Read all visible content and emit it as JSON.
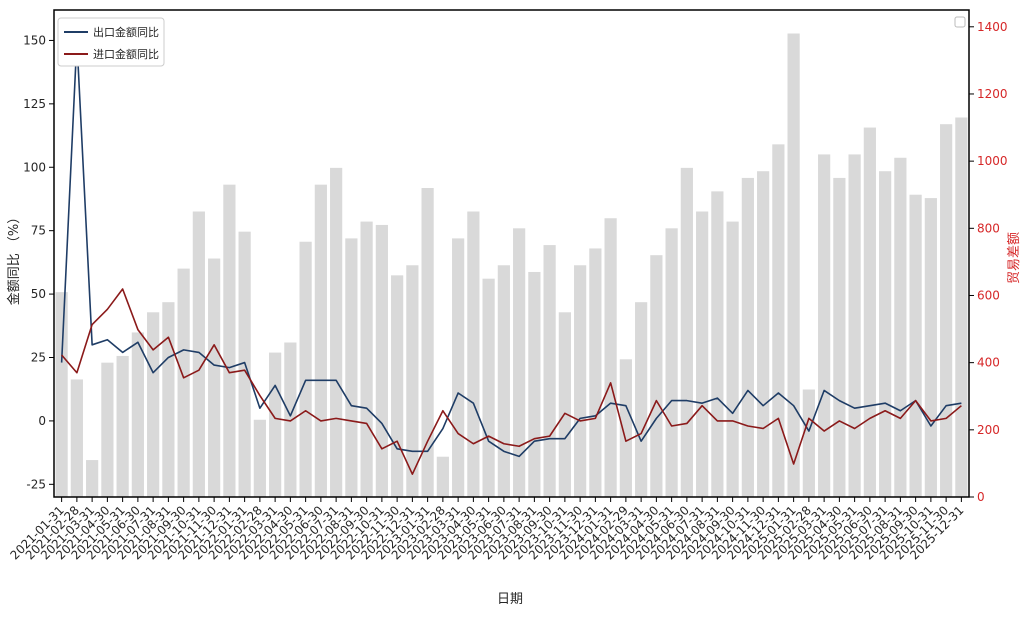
{
  "chart_data": {
    "type": "bar+line",
    "x": [
      "2021-01-31",
      "2021-02-28",
      "2021-03-31",
      "2021-04-30",
      "2021-05-31",
      "2021-06-30",
      "2021-07-31",
      "2021-08-31",
      "2021-09-30",
      "2021-10-31",
      "2021-11-30",
      "2021-12-31",
      "2022-01-31",
      "2022-02-28",
      "2022-03-31",
      "2022-04-30",
      "2022-05-31",
      "2022-06-30",
      "2022-07-31",
      "2022-08-31",
      "2022-09-30",
      "2022-10-31",
      "2022-11-30",
      "2022-12-31",
      "2023-01-31",
      "2023-02-28",
      "2023-03-31",
      "2023-04-30",
      "2023-05-31",
      "2023-06-30",
      "2023-07-31",
      "2023-08-31",
      "2023-09-30",
      "2023-10-31",
      "2023-11-30",
      "2023-12-31",
      "2024-01-31",
      "2024-02-29",
      "2024-03-31",
      "2024-04-30",
      "2024-05-31",
      "2024-06-30",
      "2024-07-31",
      "2024-08-31",
      "2024-09-30",
      "2024-10-31",
      "2024-11-30",
      "2024-12-31",
      "2025-01-31",
      "2025-02-28",
      "2025-03-31",
      "2025-04-30",
      "2025-05-31",
      "2025-06-30",
      "2025-07-31",
      "2025-08-31",
      "2025-09-30",
      "2025-10-31",
      "2025-11-30",
      "2025-12-31"
    ],
    "xlabel": "日期",
    "ylabel_left": "金额同比 （%）",
    "ylabel_right": "贸易差额",
    "ylim_left": [
      -30,
      162
    ],
    "ylim_right": [
      0,
      1450
    ],
    "yticks_left": [
      -25,
      0,
      25,
      50,
      75,
      100,
      125,
      150
    ],
    "yticks_right": [
      0,
      200,
      400,
      600,
      800,
      1000,
      1200,
      1400
    ],
    "bars": {
      "color": "#d9d9d9",
      "axis": "right",
      "values": [
        610,
        350,
        110,
        400,
        420,
        490,
        550,
        580,
        680,
        850,
        710,
        930,
        790,
        230,
        430,
        460,
        760,
        930,
        980,
        770,
        820,
        810,
        660,
        690,
        920,
        120,
        770,
        850,
        650,
        690,
        800,
        670,
        750,
        550,
        690,
        740,
        830,
        410,
        580,
        720,
        800,
        980,
        850,
        910,
        820,
        950,
        970,
        1050,
        1380,
        320,
        1020,
        950,
        1020,
        1100,
        970,
        1010,
        900,
        890,
        1110,
        1130
      ]
    },
    "series": [
      {
        "name": "出口金额同比",
        "color": "#1f3d66",
        "axis": "left",
        "values": [
          23,
          150,
          30,
          32,
          27,
          31,
          19,
          25,
          28,
          27,
          22,
          21,
          23,
          5,
          14,
          2,
          16,
          16,
          16,
          6,
          5,
          -1,
          -11,
          -12,
          -12,
          -3,
          11,
          7,
          -8,
          -12,
          -14,
          -8,
          -7,
          -7,
          1,
          2,
          7,
          6,
          -8,
          1,
          8,
          8,
          7,
          9,
          3,
          12,
          6,
          11,
          6,
          -4,
          12,
          8,
          5,
          6,
          7,
          4,
          8,
          -2,
          6,
          7
        ]
      },
      {
        "name": "进口金额同比",
        "color": "#8b1a1a",
        "axis": "left",
        "values": [
          26,
          19,
          38,
          44,
          52,
          36,
          28,
          33,
          17,
          20,
          30,
          19,
          20,
          10,
          1,
          0,
          4,
          0,
          1,
          0,
          -1,
          -11,
          -8,
          -21,
          -8,
          4,
          -5,
          -9,
          -6,
          -9,
          -10,
          -7,
          -6,
          3,
          0,
          1,
          15,
          -8,
          -5,
          8,
          -2,
          -1,
          6,
          0,
          0,
          -2,
          -3,
          1,
          -17,
          1,
          -4,
          0,
          -3,
          1,
          4,
          1,
          8,
          0,
          1,
          6
        ]
      }
    ],
    "legend": {
      "position": "upper left"
    },
    "grid": false
  }
}
